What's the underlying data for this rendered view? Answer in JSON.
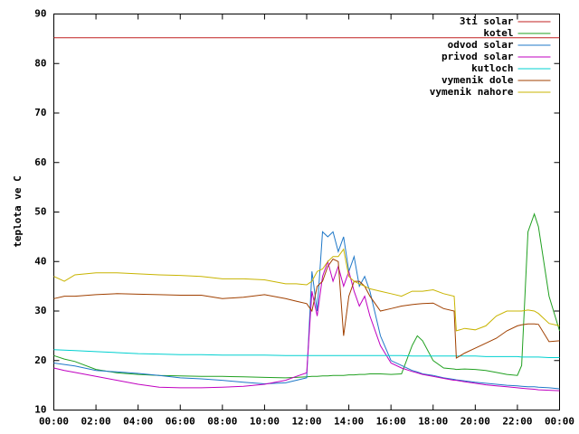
{
  "chart_data": {
    "type": "line",
    "ylabel": "teplota ve C",
    "x": [
      0,
      0.5,
      1,
      2,
      3,
      4,
      5,
      6,
      7,
      8,
      9,
      10,
      11,
      11.5,
      12,
      12.25,
      12.5,
      12.75,
      13,
      13.25,
      13.5,
      13.75,
      14,
      14.25,
      14.5,
      14.75,
      15,
      15.5,
      16,
      16.5,
      17,
      17.25,
      17.5,
      18,
      18.5,
      19,
      19.1,
      19.5,
      20,
      20.5,
      21,
      21.5,
      22,
      22.2,
      22.5,
      22.8,
      23,
      23.5,
      24
    ],
    "xlim": [
      0,
      24
    ],
    "xticks": [
      {
        "value": 0,
        "label": "00:00"
      },
      {
        "value": 2,
        "label": "02:00"
      },
      {
        "value": 4,
        "label": "04:00"
      },
      {
        "value": 6,
        "label": "06:00"
      },
      {
        "value": 8,
        "label": "08:00"
      },
      {
        "value": 10,
        "label": "10:00"
      },
      {
        "value": 12,
        "label": "12:00"
      },
      {
        "value": 14,
        "label": "14:00"
      },
      {
        "value": 16,
        "label": "16:00"
      },
      {
        "value": 18,
        "label": "18:00"
      },
      {
        "value": 20,
        "label": "20:00"
      },
      {
        "value": 22,
        "label": "22:00"
      },
      {
        "value": 24,
        "label": "00:00"
      }
    ],
    "ylim": [
      10,
      90
    ],
    "yticks": [
      10,
      20,
      30,
      40,
      50,
      60,
      70,
      80,
      90
    ],
    "legend": "top-right",
    "series": [
      {
        "name": "3ti solar",
        "color": "#c02020",
        "values": [
          85.2,
          85.2,
          85.2,
          85.2,
          85.2,
          85.2,
          85.2,
          85.2,
          85.2,
          85.2,
          85.2,
          85.2,
          85.2,
          85.2,
          85.2,
          85.2,
          85.2,
          85.2,
          85.2,
          85.2,
          85.2,
          85.2,
          85.2,
          85.2,
          85.2,
          85.2,
          85.2,
          85.2,
          85.2,
          85.2,
          85.2,
          85.2,
          85.2,
          85.2,
          85.2,
          85.2,
          85.2,
          85.2,
          85.2,
          85.2,
          85.2,
          85.2,
          85.2,
          85.2,
          85.2,
          85.2,
          85.2,
          85.2,
          85.2
        ]
      },
      {
        "name": "kotel",
        "color": "#20a020",
        "values": [
          21,
          20.3,
          19.8,
          18.2,
          17.5,
          17.2,
          17,
          16.9,
          16.8,
          16.8,
          16.7,
          16.6,
          16.5,
          16.6,
          16.7,
          16.8,
          16.8,
          16.9,
          16.9,
          17,
          17,
          17,
          17.1,
          17.1,
          17.2,
          17.2,
          17.3,
          17.3,
          17.2,
          17.3,
          23,
          25,
          24,
          20,
          18.5,
          18.3,
          18.2,
          18.3,
          18.2,
          18,
          17.6,
          17.2,
          17,
          19,
          46,
          49.6,
          47,
          33,
          26
        ]
      },
      {
        "name": "odvod solar",
        "color": "#1f78c8",
        "values": [
          19.5,
          19.2,
          18.9,
          18,
          17.7,
          17.4,
          17,
          16.5,
          16.3,
          16,
          15.6,
          15.3,
          15.5,
          16,
          16.5,
          38,
          30,
          46,
          45,
          46,
          42,
          45,
          38,
          41,
          35,
          37,
          34,
          25,
          20,
          19,
          18,
          17.7,
          17.3,
          17,
          16.5,
          16.2,
          16.1,
          15.9,
          15.6,
          15.4,
          15.2,
          15,
          14.9,
          14.8,
          14.7,
          14.7,
          14.6,
          14.5,
          14.3
        ]
      },
      {
        "name": "privod solar",
        "color": "#c000c0",
        "values": [
          18.5,
          18,
          17.6,
          16.8,
          16,
          15.2,
          14.6,
          14.5,
          14.5,
          14.6,
          14.8,
          15.2,
          16,
          16.8,
          17.5,
          34,
          29,
          37,
          40,
          36,
          39,
          35,
          38,
          34,
          31,
          33,
          29,
          23,
          19.5,
          18.5,
          17.8,
          17.5,
          17.2,
          16.8,
          16.4,
          16,
          16,
          15.7,
          15.4,
          15.1,
          14.9,
          14.7,
          14.5,
          14.4,
          14.3,
          14.2,
          14.1,
          14,
          13.9
        ]
      },
      {
        "name": "kutloch",
        "color": "#00d0d0",
        "values": [
          22.2,
          22.1,
          22,
          21.8,
          21.6,
          21.4,
          21.3,
          21.2,
          21.2,
          21.1,
          21.1,
          21.1,
          21,
          21,
          21,
          21,
          21,
          21,
          21,
          21,
          21,
          21,
          21,
          21,
          21,
          21,
          21,
          21,
          21,
          21,
          20.9,
          20.9,
          20.9,
          20.9,
          20.9,
          20.9,
          20.9,
          20.9,
          20.9,
          20.8,
          20.8,
          20.8,
          20.8,
          20.7,
          20.7,
          20.7,
          20.7,
          20.6,
          20.6
        ]
      },
      {
        "name": "vymenik dole",
        "color": "#a04000",
        "values": [
          32.5,
          33,
          33,
          33.3,
          33.5,
          33.4,
          33.3,
          33.2,
          33.2,
          32.5,
          32.8,
          33.3,
          32.5,
          32,
          31.5,
          30,
          35,
          36,
          39,
          40.5,
          40,
          25,
          33,
          36,
          36,
          35,
          33,
          30,
          30.5,
          31,
          31.3,
          31.4,
          31.5,
          31.6,
          30.5,
          30,
          20.5,
          21.5,
          22.5,
          23.5,
          24.5,
          26,
          27,
          27.2,
          27.4,
          27.4,
          27.3,
          23.8,
          24
        ]
      },
      {
        "name": "vymenik nahore",
        "color": "#c8b400",
        "values": [
          37,
          36,
          37.3,
          37.7,
          37.7,
          37.5,
          37.3,
          37.2,
          37,
          36.5,
          36.5,
          36.3,
          35.5,
          35.5,
          35.3,
          36,
          38,
          38.5,
          40,
          41,
          41,
          42.5,
          37,
          36,
          35.5,
          35,
          34.5,
          34,
          33.5,
          33,
          34,
          34,
          34,
          34.3,
          33.5,
          33,
          26,
          26.5,
          26.2,
          27,
          29,
          30,
          30,
          30,
          30.2,
          30,
          29.5,
          27.5,
          27
        ]
      }
    ]
  }
}
